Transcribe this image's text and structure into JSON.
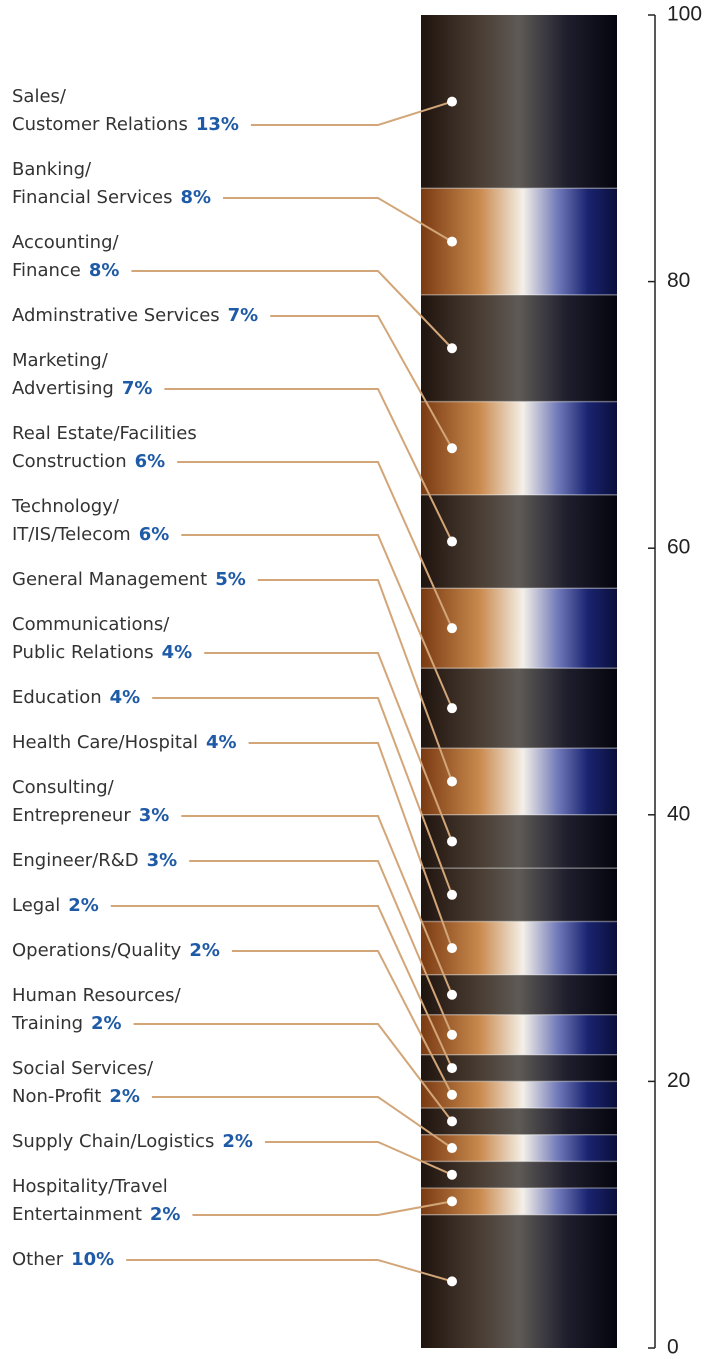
{
  "chart_data": {
    "type": "stacked-bar",
    "categories": [
      [
        "Sales/",
        "Customer Relations"
      ],
      [
        "Banking/",
        "Financial Services"
      ],
      [
        "Accounting/",
        "Finance"
      ],
      [
        "Adminstrative Services"
      ],
      [
        "Marketing/",
        "Advertising"
      ],
      [
        "Real Estate/Facilities",
        "Construction"
      ],
      [
        "Technology/",
        "IT/IS/Telecom"
      ],
      [
        "General Management"
      ],
      [
        "Communications/",
        "Public Relations"
      ],
      [
        "Education"
      ],
      [
        "Health Care/Hospital"
      ],
      [
        "Consulting/",
        "Entrepreneur"
      ],
      [
        "Engineer/R&D"
      ],
      [
        "Legal"
      ],
      [
        "Operations/Quality"
      ],
      [
        "Human Resources/",
        "Training"
      ],
      [
        "Social Services/",
        "Non-Profit"
      ],
      [
        "Supply Chain/Logistics"
      ],
      [
        "Hospitality/Travel",
        "Entertainment"
      ],
      [
        "Other"
      ]
    ],
    "values": [
      13,
      8,
      8,
      7,
      7,
      6,
      6,
      5,
      4,
      4,
      4,
      3,
      3,
      2,
      2,
      2,
      2,
      2,
      2,
      10
    ],
    "value_labels": [
      "13%",
      "8%",
      "8%",
      "7%",
      "7%",
      "6%",
      "6%",
      "5%",
      "4%",
      "4%",
      "4%",
      "3%",
      "3%",
      "2%",
      "2%",
      "2%",
      "2%",
      "2%",
      "2%",
      "10%"
    ],
    "ylim": [
      0,
      100
    ],
    "yticks": [
      0,
      20,
      40,
      60,
      80,
      100
    ]
  }
}
